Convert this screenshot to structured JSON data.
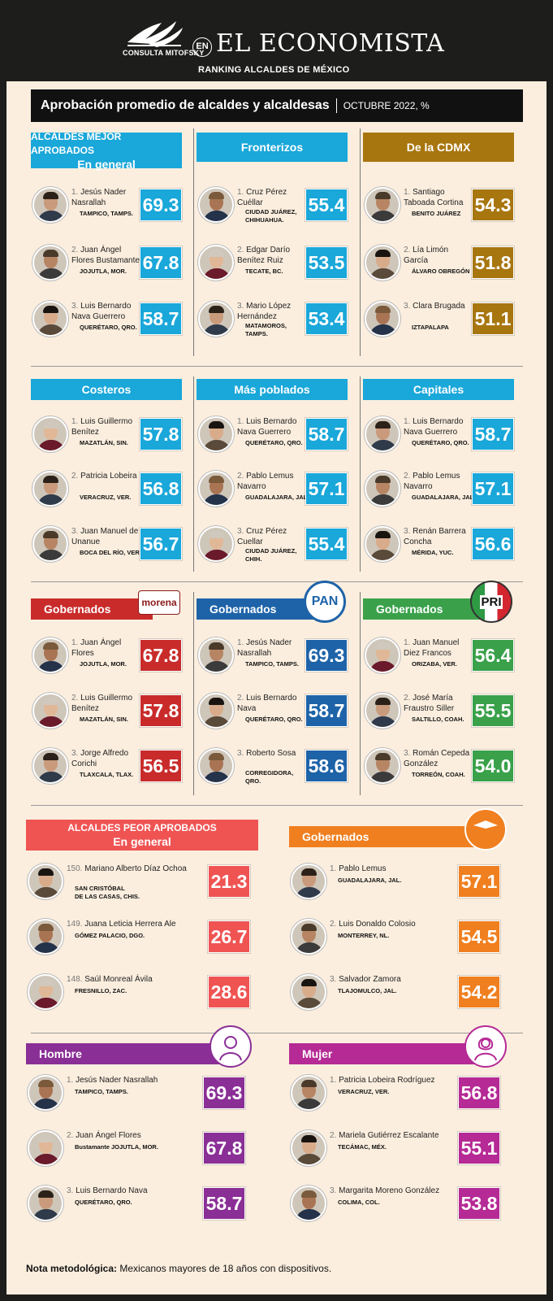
{
  "header": {
    "logo_text": "CONSULTA MITOFSKY",
    "en": "EN",
    "brand": "EL ECONOMISTA",
    "subtitle": "RANKING ALCALDES DE MÉXICO",
    "title": "Aprobación promedio de alcaldes y alcaldesas",
    "date": "OCTUBRE 2022, %"
  },
  "colors": {
    "blue": "#1aa7d9",
    "gold": "#a8760f",
    "red": "#c92b2b",
    "pan_blue": "#1e63a8",
    "green": "#3aa14a",
    "salmon": "#ef5453",
    "orange": "#f07f1f",
    "purple": "#8a2f96",
    "magenta": "#b52a95"
  },
  "panels": {
    "general": {
      "title_l1": "ALCALDES MEJOR APROBADOS",
      "title_l2": "En general",
      "rows": [
        {
          "rank": "1.",
          "name": "Jesús Nader Nasrallah",
          "loc": "TAMPICO, TAMPS.",
          "score": "69.3"
        },
        {
          "rank": "2.",
          "name": "Juan Ángel Flores Bustamante",
          "loc": "JOJUTLA, MOR.",
          "score": "67.8"
        },
        {
          "rank": "3.",
          "name": "Luis Bernardo Nava Guerrero",
          "loc": "QUERÉTARO, QRO.",
          "score": "58.7"
        }
      ]
    },
    "fronterizos": {
      "title": "Fronterizos",
      "rows": [
        {
          "rank": "1.",
          "name": "Cruz Pérez Cuéllar",
          "loc": "CIUDAD JUÁREZ,",
          "loc2": "CHIHUAHUA.",
          "score": "55.4"
        },
        {
          "rank": "2.",
          "name": "Edgar Darío Benítez Ruiz",
          "loc": "TECATE, BC.",
          "score": "53.5"
        },
        {
          "rank": "3.",
          "name": "Mario López Hernández",
          "loc": "MATAMOROS,",
          "loc2": "TAMPS.",
          "score": "53.4"
        }
      ]
    },
    "cdmx": {
      "title": "De la CDMX",
      "rows": [
        {
          "rank": "1.",
          "name": "Santiago Taboada Cortina",
          "loc": "BENITO JUÁREZ",
          "score": "54.3"
        },
        {
          "rank": "2.",
          "name": "Lía Limón García",
          "loc": "ÁLVARO OBREGÓN",
          "score": "51.8"
        },
        {
          "rank": "3.",
          "name": "Clara Brugada",
          "loc": "IZTAPALAPA",
          "score": "51.1"
        }
      ]
    },
    "costeros": {
      "title": "Costeros",
      "rows": [
        {
          "rank": "1.",
          "name": "Luis Guillermo Benítez",
          "loc": "MAZATLÁN, SIN.",
          "score": "57.8"
        },
        {
          "rank": "2.",
          "name": "Patricia Lobeira",
          "loc": "VERACRUZ, VER.",
          "score": "56.8"
        },
        {
          "rank": "3.",
          "name": "Juan Manuel de Unanue",
          "loc": "BOCA DEL RÍO, VER.",
          "score": "56.7"
        }
      ]
    },
    "poblados": {
      "title": "Más poblados",
      "rows": [
        {
          "rank": "1.",
          "name": "Luis Bernardo Nava Guerrero",
          "loc": "QUERÉTARO, QRO.",
          "score": "58.7"
        },
        {
          "rank": "2.",
          "name": "Pablo Lemus Navarro",
          "loc": "GUADALAJARA, JAL.",
          "score": "57.1"
        },
        {
          "rank": "3.",
          "name": "Cruz Pérez Cuellar",
          "loc": "CIUDAD JUÁREZ,",
          "loc2": "CHIH.",
          "score": "55.4"
        }
      ]
    },
    "capitales": {
      "title": "Capitales",
      "rows": [
        {
          "rank": "1.",
          "name": "Luis Bernardo Nava Guerrero",
          "loc": "QUERÉTARO, QRO.",
          "score": "58.7"
        },
        {
          "rank": "2.",
          "name": "Pablo Lemus Navarro",
          "loc": "GUADALAJARA, JAL.",
          "score": "57.1"
        },
        {
          "rank": "3.",
          "name": "Renán Barrera Concha",
          "loc": "MÉRIDA, YUC.",
          "score": "56.6"
        }
      ]
    },
    "morena": {
      "title": "Gobernados",
      "party": "morena",
      "rows": [
        {
          "rank": "1.",
          "name": "Juan Ángel Flores",
          "loc": "JOJUTLA, MOR.",
          "score": "67.8"
        },
        {
          "rank": "2.",
          "name": "Luis Guillermo Benítez",
          "loc": "MAZATLÁN, SIN.",
          "score": "57.8"
        },
        {
          "rank": "3.",
          "name": "Jorge Alfredo Corichi",
          "loc": "TLAXCALA, TLAX.",
          "score": "56.5"
        }
      ]
    },
    "pan": {
      "title": "Gobernados",
      "party": "PAN",
      "rows": [
        {
          "rank": "1.",
          "name": "Jesús Nader Nasrallah",
          "loc": "TAMPICO, TAMPS.",
          "score": "69.3"
        },
        {
          "rank": "2.",
          "name": "Luis Bernardo Nava",
          "loc": "QUERÉTARO, QRO.",
          "score": "58.7"
        },
        {
          "rank": "3.",
          "name": "Roberto Sosa",
          "loc": "CORREGIDORA,",
          "loc2": "QRO.",
          "score": "58.6"
        }
      ]
    },
    "pri": {
      "title": "Gobernados",
      "party": "PRI",
      "rows": [
        {
          "rank": "1.",
          "name": "Juan Manuel Diez Francos",
          "loc": "ORIZABA, VER.",
          "score": "56.4"
        },
        {
          "rank": "2.",
          "name": "José María Fraustro Siller",
          "loc": "SALTILLO, COAH.",
          "score": "55.5"
        },
        {
          "rank": "3.",
          "name": "Román Cepeda González",
          "loc": "TORREÓN, COAH.",
          "score": "54.0"
        }
      ]
    },
    "peor": {
      "title_l1": "ALCALDES PEOR APROBADOS",
      "title_l2": "En general",
      "rows": [
        {
          "rank": "150.",
          "name": "Mariano Alberto Díaz Ochoa",
          "loc": "SAN CRISTÓBAL",
          "loc2": "DE LAS CASAS, CHIS.",
          "score": "21.3"
        },
        {
          "rank": "149.",
          "name": "Juana Leticia Herrera Ale",
          "loc": "GÓMEZ PALACIO, DGO.",
          "score": "26.7"
        },
        {
          "rank": "148.",
          "name": "Saúl Monreal Ávila",
          "loc": "FRESNILLO, ZAC.",
          "score": "28.6"
        }
      ]
    },
    "mc": {
      "title": "Gobernados",
      "party": "MOVIMIENTO CIUDADANO",
      "rows": [
        {
          "rank": "1.",
          "name": "Pablo Lemus",
          "loc": "GUADALAJARA, JAL.",
          "score": "57.1"
        },
        {
          "rank": "2.",
          "name": "Luis Donaldo Colosio",
          "loc": "MONTERREY, NL.",
          "score": "54.5"
        },
        {
          "rank": "3.",
          "name": "Salvador Zamora",
          "loc": "TLAJOMULCO, JAL.",
          "score": "54.2"
        }
      ]
    },
    "hombre": {
      "title": "Hombre",
      "rows": [
        {
          "rank": "1.",
          "name": "Jesús Nader Nasrallah",
          "loc": "TAMPICO, TAMPS.",
          "score": "69.3"
        },
        {
          "rank": "2.",
          "name": "Juan Ángel Flores",
          "loc": "Bustamante JOJUTLA, MOR.",
          "score": "67.8"
        },
        {
          "rank": "3.",
          "name": "Luis Bernardo Nava",
          "loc": "QUERÉTARO, QRO.",
          "score": "58.7"
        }
      ]
    },
    "mujer": {
      "title": "Mujer",
      "rows": [
        {
          "rank": "1.",
          "name": "Patricia Lobeira Rodríguez",
          "loc": "VERACRUZ, VER.",
          "score": "56.8"
        },
        {
          "rank": "2.",
          "name": "Mariela Gutiérrez Escalante",
          "loc": "TECÁMAC, MÉX.",
          "score": "55.1"
        },
        {
          "rank": "3.",
          "name": "Margarita Moreno González",
          "loc": "COLIMA, COL.",
          "score": "53.8"
        }
      ]
    }
  },
  "footer": {
    "label": "Nota metodológica:",
    "text": "Mexicanos mayores de 18 años con dispositivos."
  }
}
